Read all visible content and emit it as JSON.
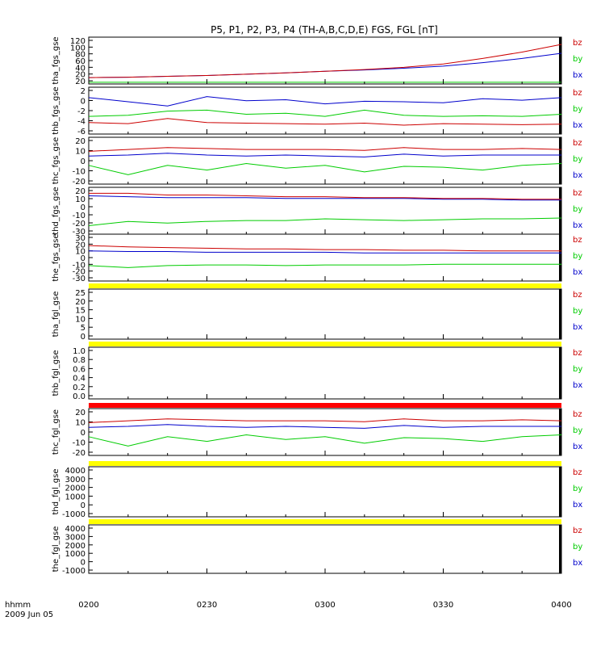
{
  "title": "P5, P1, P2, P3, P4 (TH-A,B,C,D,E) FGS, FGL [nT]",
  "time_axis": {
    "label_line1": "hhmm",
    "label_line2": "2009 Jun 05",
    "ticks": [
      "0200",
      "0230",
      "0300",
      "0330",
      "0400"
    ]
  },
  "colors": {
    "bz": "#cc0000",
    "by": "#00cc00",
    "bx": "#0000cc",
    "flag": "#ffff00",
    "flag_red": "#ff0000"
  },
  "legend": [
    "bz",
    "by",
    "bx"
  ],
  "chart_data": [
    {
      "type": "line",
      "ylabel": "tha_fgs_gse",
      "x": [
        "0200",
        "0210",
        "0220",
        "0230",
        "0240",
        "0250",
        "0300",
        "0310",
        "0320",
        "0330",
        "0340",
        "0350",
        "0400"
      ],
      "ylim": [
        15,
        125
      ],
      "yticks": [
        "20",
        "20",
        "40",
        "60",
        "80",
        "100",
        "120"
      ],
      "series": [
        {
          "name": "bz",
          "values": [
            30,
            31,
            33,
            35,
            38,
            41,
            45,
            49,
            54,
            62,
            75,
            90,
            108
          ]
        },
        {
          "name": "by",
          "values": [
            19,
            19,
            19,
            19,
            19,
            19,
            19,
            19,
            19,
            19,
            19,
            19,
            19
          ]
        },
        {
          "name": "bx",
          "values": [
            30,
            31,
            33,
            35,
            38,
            41,
            45,
            48,
            52,
            57,
            65,
            75,
            87
          ]
        }
      ]
    },
    {
      "type": "line",
      "ylabel": "thb_fgs_gse",
      "x": [
        "0200",
        "0210",
        "0220",
        "0230",
        "0240",
        "0250",
        "0300",
        "0310",
        "0320",
        "0330",
        "0340",
        "0350",
        "0400"
      ],
      "ylim": [
        -6,
        3
      ],
      "yticks": [
        "-6",
        "-4",
        "-2",
        "0",
        "2"
      ],
      "series": [
        {
          "name": "bz",
          "values": [
            -3.8,
            -4.0,
            -3.0,
            -3.8,
            -3.9,
            -4.0,
            -4.1,
            -3.9,
            -4.3,
            -4.0,
            -4.1,
            -4.2,
            -4.1
          ]
        },
        {
          "name": "by",
          "values": [
            -2.6,
            -2.4,
            -1.6,
            -1.4,
            -2.2,
            -2.0,
            -2.6,
            -1.4,
            -2.4,
            -2.6,
            -2.5,
            -2.6,
            -2.2
          ]
        },
        {
          "name": "bx",
          "values": [
            1.0,
            0.2,
            -0.6,
            1.2,
            0.4,
            0.6,
            -0.2,
            0.3,
            0.2,
            0.0,
            0.8,
            0.5,
            1.0
          ]
        }
      ]
    },
    {
      "type": "line",
      "ylabel": "thc_fgs_gse",
      "x": [
        "0200",
        "0210",
        "0220",
        "0230",
        "0240",
        "0250",
        "0300",
        "0310",
        "0320",
        "0330",
        "0340",
        "0350",
        "0400"
      ],
      "ylim": [
        -25,
        25
      ],
      "yticks": [
        "-20",
        "-10",
        "0",
        "10",
        "20"
      ],
      "series": [
        {
          "name": "bz",
          "values": [
            10,
            12,
            14,
            13,
            12,
            12,
            12,
            11,
            14,
            12,
            12,
            13,
            12
          ]
        },
        {
          "name": "by",
          "values": [
            -5,
            -15,
            -5,
            -10,
            -3,
            -8,
            -5,
            -12,
            -6,
            -7,
            -10,
            -5,
            -3
          ]
        },
        {
          "name": "bx",
          "values": [
            5,
            6,
            8,
            6,
            5,
            6,
            5,
            4,
            7,
            5,
            6,
            6,
            6
          ]
        }
      ]
    },
    {
      "type": "line",
      "ylabel": "thd_fgs_gse",
      "x": [
        "0200",
        "0210",
        "0220",
        "0230",
        "0240",
        "0250",
        "0300",
        "0310",
        "0320",
        "0330",
        "0340",
        "0350",
        "0400"
      ],
      "ylim": [
        -30,
        25
      ],
      "yticks": [
        "-30",
        "-20",
        "-10",
        "0",
        "10",
        "20"
      ],
      "series": [
        {
          "name": "bz",
          "values": [
            18,
            18,
            16,
            16,
            15,
            14,
            14,
            13,
            13,
            12,
            12,
            11,
            11
          ]
        },
        {
          "name": "by",
          "values": [
            -20,
            -15,
            -17,
            -15,
            -14,
            -14,
            -12,
            -13,
            -14,
            -13,
            -12,
            -12,
            -11
          ]
        },
        {
          "name": "bx",
          "values": [
            15,
            14,
            13,
            13,
            13,
            12,
            12,
            12,
            12,
            11,
            11,
            10,
            10
          ]
        }
      ]
    },
    {
      "type": "line",
      "ylabel": "the_fgs_gse",
      "x": [
        "0200",
        "0210",
        "0220",
        "0230",
        "0240",
        "0250",
        "0300",
        "0310",
        "0320",
        "0330",
        "0340",
        "0350",
        "0400"
      ],
      "ylim": [
        -35,
        35
      ],
      "yticks": [
        "-30",
        "-20",
        "-10",
        "0",
        "10",
        "20",
        "30"
      ],
      "series": [
        {
          "name": "bz",
          "values": [
            18,
            16,
            15,
            14,
            13,
            13,
            12,
            12,
            11,
            11,
            10,
            10,
            10
          ]
        },
        {
          "name": "by",
          "values": [
            -12,
            -15,
            -12,
            -11,
            -11,
            -12,
            -11,
            -11,
            -11,
            -10,
            -10,
            -10,
            -10
          ]
        },
        {
          "name": "bx",
          "values": [
            10,
            9,
            9,
            8,
            8,
            8,
            8,
            7,
            7,
            7,
            7,
            7,
            7
          ]
        }
      ]
    },
    {
      "type": "line",
      "ylabel": "thc_fgl_gse",
      "x": [
        "0200",
        "0210",
        "0220",
        "0230",
        "0240",
        "0250",
        "0300",
        "0310",
        "0320",
        "0330",
        "0340",
        "0350",
        "0400"
      ],
      "ylim": [
        -25,
        25
      ],
      "yticks": [
        "-20",
        "-10",
        "0",
        "10",
        "20"
      ],
      "series": [
        {
          "name": "bz",
          "values": [
            10,
            12,
            14,
            13,
            12,
            12,
            12,
            11,
            14,
            12,
            12,
            13,
            12
          ]
        },
        {
          "name": "by",
          "values": [
            -5,
            -15,
            -5,
            -10,
            -3,
            -8,
            -5,
            -12,
            -6,
            -7,
            -10,
            -5,
            -3
          ]
        },
        {
          "name": "bx",
          "values": [
            5,
            6,
            8,
            6,
            5,
            6,
            5,
            4,
            7,
            5,
            6,
            6,
            6
          ]
        }
      ]
    }
  ],
  "empty_panels": [
    {
      "ylabel": "tha_fgl_gse",
      "yticks": [
        "0",
        "5",
        "10",
        "15",
        "20",
        "25"
      ]
    },
    {
      "ylabel": "thb_fgl_gse",
      "yticks": [
        "0.0",
        "0.2",
        "0.4",
        "0.6",
        "0.8",
        "1.0"
      ]
    },
    {
      "ylabel": "thd_fgl_gse",
      "yticks": [
        "-1000",
        "0",
        "1000",
        "2000",
        "3000",
        "4000"
      ]
    },
    {
      "ylabel": "the_fgl_gse",
      "yticks": [
        "-1000",
        "0",
        "1000",
        "2000",
        "3000",
        "4000"
      ]
    }
  ]
}
